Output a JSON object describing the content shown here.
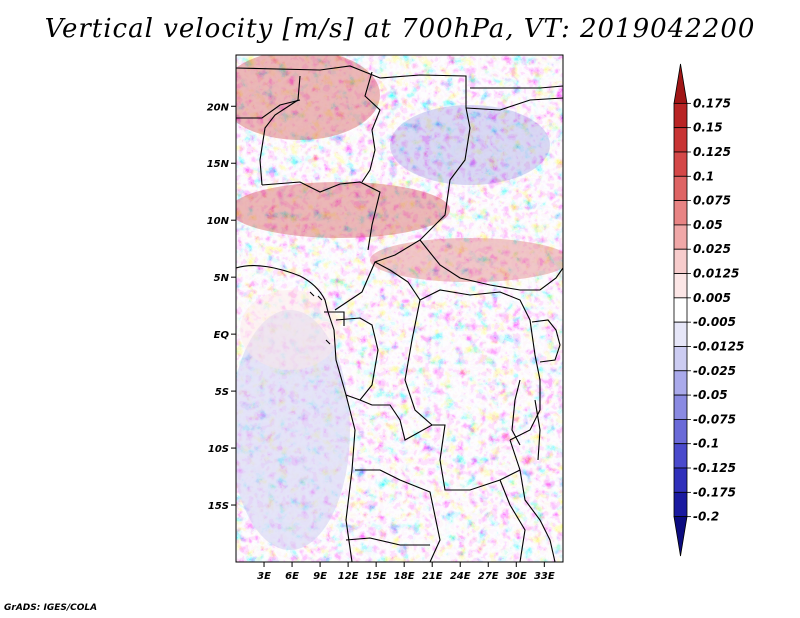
{
  "title": "Vertical velocity [m/s] at 700hPa, VT: 2019042200",
  "footer": "GrADS: IGES/COLA",
  "map": {
    "lat_labels": [
      "20N",
      "15N",
      "10N",
      "5N",
      "EQ",
      "5S",
      "10S",
      "15S"
    ],
    "lat_values": [
      20,
      15,
      10,
      5,
      0,
      -5,
      -10,
      -15
    ],
    "lon_labels": [
      "3E",
      "6E",
      "9E",
      "12E",
      "15E",
      "18E",
      "21E",
      "24E",
      "27E",
      "30E",
      "33E"
    ],
    "lon_values": [
      3,
      6,
      9,
      12,
      15,
      18,
      21,
      24,
      27,
      30,
      33
    ],
    "lon_range": [
      0,
      35
    ],
    "lat_range": [
      -20,
      24.5
    ]
  },
  "colorbar": {
    "labels": [
      "0.175",
      "0.15",
      "0.125",
      "0.1",
      "0.075",
      "0.05",
      "0.025",
      "0.0125",
      "0.005",
      "-0.005",
      "-0.0125",
      "-0.025",
      "-0.05",
      "-0.075",
      "-0.1",
      "-0.125",
      "-0.175",
      "-0.2"
    ],
    "colors": [
      "#a01616",
      "#b82424",
      "#c83434",
      "#d44848",
      "#de6464",
      "#e88484",
      "#f0a8a8",
      "#f7cccc",
      "#fce6e6",
      "#ffffff",
      "#e6e6f8",
      "#ccccf2",
      "#aaaaeb",
      "#8a8ae2",
      "#6a6ad8",
      "#4a4acc",
      "#3030bb",
      "#1a1aa0",
      "#0c0c80"
    ]
  }
}
